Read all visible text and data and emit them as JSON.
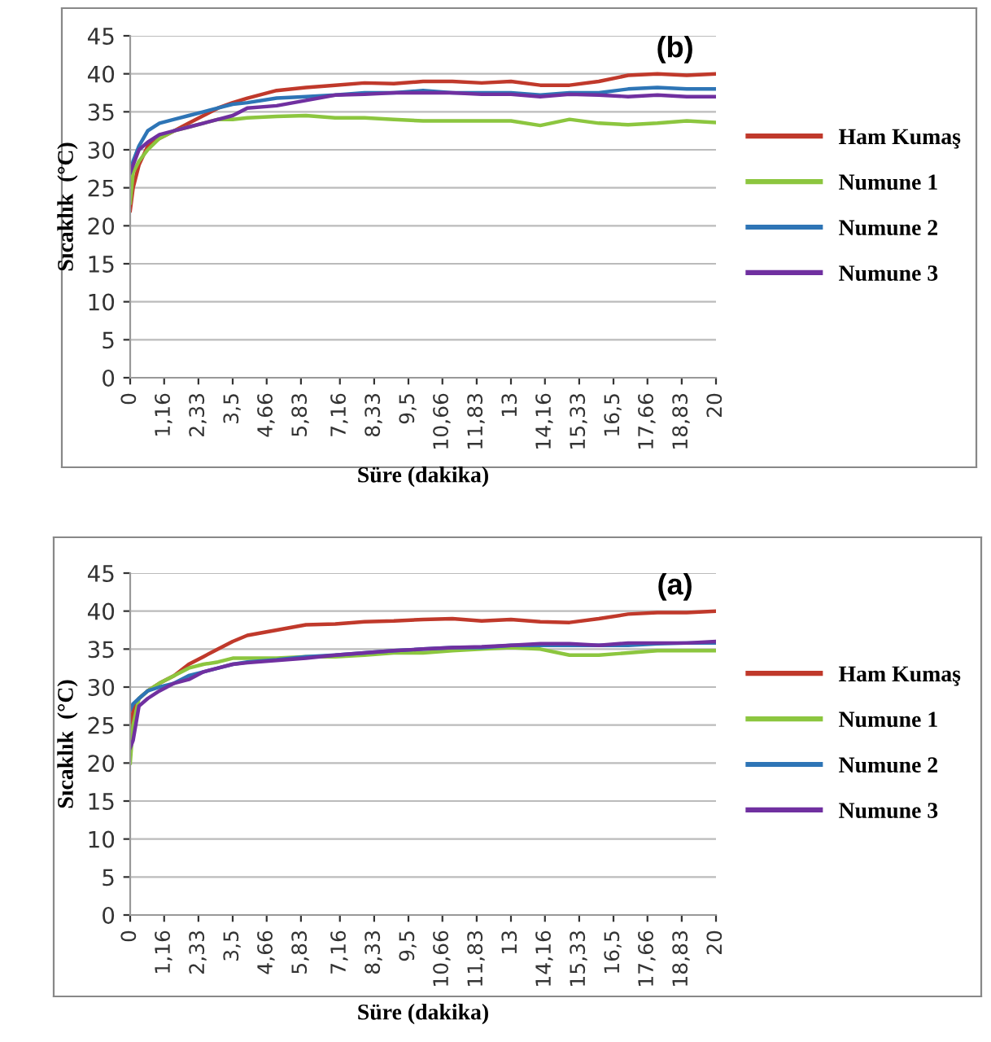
{
  "chart_data": [
    {
      "type": "line",
      "title": "(b)",
      "xlabel": "Süre (dakika)",
      "ylabel": "Sıcaklık  (°C)",
      "xlim": [
        0,
        20
      ],
      "ylim": [
        0,
        45
      ],
      "yticks": [
        0,
        5,
        10,
        15,
        20,
        25,
        30,
        35,
        40,
        45
      ],
      "xticks": [
        0,
        {
          "value": 1.16,
          "label": "1,16"
        },
        {
          "value": 2.33,
          "label": "2,33"
        },
        {
          "value": 3.5,
          "label": "3,5"
        },
        {
          "value": 4.66,
          "label": "4,66"
        },
        {
          "value": 5.83,
          "label": "5,83"
        },
        {
          "value": 7.16,
          "label": "7,16"
        },
        {
          "value": 8.33,
          "label": "8,33"
        },
        {
          "value": 9.5,
          "label": "9,5"
        },
        {
          "value": 10.66,
          "label": "10,66"
        },
        {
          "value": 11.83,
          "label": "11,83"
        },
        13,
        {
          "value": 14.16,
          "label": "14,16"
        },
        {
          "value": 15.33,
          "label": "15,33"
        },
        {
          "value": 16.5,
          "label": "16,5"
        },
        {
          "value": 17.66,
          "label": "17,66"
        },
        {
          "value": 18.83,
          "label": "18,83"
        },
        20
      ],
      "grid": "y",
      "legend": "right",
      "x": [
        0,
        0.1,
        0.3,
        0.6,
        1,
        1.5,
        2,
        2.5,
        3,
        3.5,
        4,
        5,
        6,
        7,
        8,
        9,
        10,
        11,
        12,
        13,
        14,
        15,
        16,
        17,
        18,
        19,
        20
      ],
      "series": [
        {
          "name": "Ham Kumaş",
          "color": "#c0392b",
          "values": [
            22,
            25,
            28,
            30.5,
            31.5,
            32.5,
            33.5,
            34.5,
            35.5,
            36.2,
            36.8,
            37.8,
            38.2,
            38.5,
            38.8,
            38.7,
            39,
            39,
            38.8,
            39,
            38.5,
            38.5,
            39,
            39.8,
            40,
            39.8,
            40
          ]
        },
        {
          "name": "Numune 1",
          "color": "#8cc63f",
          "values": [
            23,
            27,
            28.5,
            30,
            31.5,
            32.5,
            33,
            33.5,
            34,
            34,
            34.2,
            34.4,
            34.5,
            34.2,
            34.2,
            34,
            33.8,
            33.8,
            33.8,
            33.8,
            33.2,
            34,
            33.5,
            33.3,
            33.5,
            33.8,
            33.6
          ]
        },
        {
          "name": "Numune 2",
          "color": "#2e75b6",
          "values": [
            27,
            28.5,
            30.5,
            32.5,
            33.5,
            34,
            34.5,
            35,
            35.5,
            36,
            36.2,
            36.8,
            37,
            37.2,
            37.5,
            37.5,
            37.8,
            37.5,
            37.5,
            37.5,
            37.2,
            37.5,
            37.5,
            38,
            38.2,
            38,
            38
          ]
        },
        {
          "name": "Numune 3",
          "color": "#7030a0",
          "values": [
            27,
            28,
            30,
            31,
            32,
            32.5,
            33,
            33.5,
            34,
            34.5,
            35.5,
            35.8,
            36.5,
            37.2,
            37.3,
            37.5,
            37.5,
            37.5,
            37.3,
            37.3,
            37,
            37.3,
            37.2,
            37,
            37.2,
            37,
            37
          ]
        }
      ]
    },
    {
      "type": "line",
      "title": "(a)",
      "xlabel": "Süre (dakika)",
      "ylabel": "Sıcaklık  (°C)",
      "xlim": [
        0,
        20
      ],
      "ylim": [
        0,
        45
      ],
      "yticks": [
        0,
        5,
        10,
        15,
        20,
        25,
        30,
        35,
        40,
        45
      ],
      "xticks": [
        0,
        {
          "value": 1.16,
          "label": "1,16"
        },
        {
          "value": 2.33,
          "label": "2,33"
        },
        {
          "value": 3.5,
          "label": "3,5"
        },
        {
          "value": 4.66,
          "label": "4,66"
        },
        {
          "value": 5.83,
          "label": "5,83"
        },
        {
          "value": 7.16,
          "label": "7,16"
        },
        {
          "value": 8.33,
          "label": "8,33"
        },
        {
          "value": 9.5,
          "label": "9,5"
        },
        {
          "value": 10.66,
          "label": "10,66"
        },
        {
          "value": 11.83,
          "label": "11,83"
        },
        13,
        {
          "value": 14.16,
          "label": "14,16"
        },
        {
          "value": 15.33,
          "label": "15,33"
        },
        {
          "value": 16.5,
          "label": "16,5"
        },
        {
          "value": 17.66,
          "label": "17,66"
        },
        {
          "value": 18.83,
          "label": "18,83"
        },
        20
      ],
      "grid": "y",
      "legend": "right",
      "x": [
        0,
        0.1,
        0.3,
        0.6,
        1,
        1.5,
        2,
        2.5,
        3,
        3.5,
        4,
        5,
        6,
        7,
        8,
        9,
        10,
        11,
        12,
        13,
        14,
        15,
        16,
        17,
        18,
        19,
        20
      ],
      "series": [
        {
          "name": "Ham Kumaş",
          "color": "#c0392b",
          "values": [
            22,
            27,
            28.5,
            29.5,
            30.5,
            31.5,
            33,
            34,
            35,
            36,
            36.8,
            37.5,
            38.2,
            38.3,
            38.6,
            38.7,
            38.9,
            39,
            38.7,
            38.9,
            38.6,
            38.5,
            39,
            39.6,
            39.8,
            39.8,
            40
          ]
        },
        {
          "name": "Numune 1",
          "color": "#8cc63f",
          "values": [
            20,
            25,
            28.5,
            29.5,
            30.5,
            31.5,
            32.5,
            33,
            33.3,
            33.8,
            33.8,
            33.8,
            34,
            34,
            34.2,
            34.5,
            34.5,
            34.8,
            35,
            35.2,
            35,
            34.2,
            34.2,
            34.5,
            34.8,
            34.8,
            34.8
          ]
        },
        {
          "name": "Numune 2",
          "color": "#2e75b6",
          "values": [
            27,
            27.8,
            28.5,
            29.5,
            30,
            30.5,
            31.5,
            32,
            32.5,
            33,
            33.3,
            33.6,
            34,
            34.2,
            34.5,
            34.8,
            35,
            35.2,
            35.2,
            35.5,
            35.5,
            35.5,
            35.5,
            35.5,
            35.7,
            35.8,
            35.8
          ]
        },
        {
          "name": "Numune 3",
          "color": "#7030a0",
          "values": [
            22,
            23,
            27.5,
            28.5,
            29.5,
            30.5,
            31,
            32,
            32.5,
            33,
            33.2,
            33.5,
            33.8,
            34.2,
            34.5,
            34.8,
            35,
            35.2,
            35.3,
            35.5,
            35.7,
            35.7,
            35.5,
            35.8,
            35.8,
            35.8,
            36
          ]
        }
      ]
    }
  ]
}
